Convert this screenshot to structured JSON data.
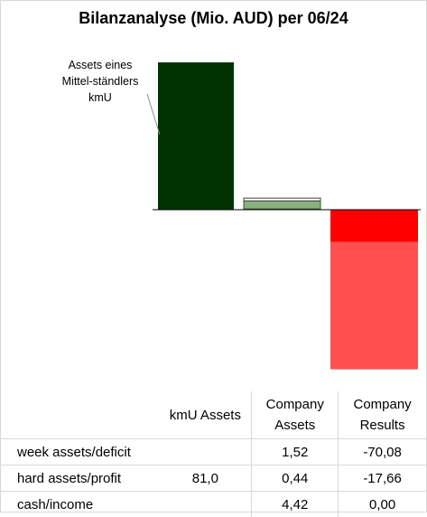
{
  "chart_data": {
    "type": "bar",
    "title": "Bilanzanalyse  (Mio. AUD) per 06/24",
    "columns": [
      "kmU Assets",
      "Company Assets",
      "Company Results"
    ],
    "annotation": "Assets eines Mittel-ständlers kmU",
    "rows": [
      {
        "label": "week assets/deficit",
        "values": [
          "",
          "1,52",
          "-70,08"
        ]
      },
      {
        "label": "hard assets/profit",
        "values": [
          "81,0",
          "0,44",
          "-17,66"
        ]
      },
      {
        "label": "cash/income",
        "values": [
          "",
          "4,42",
          "0,00"
        ]
      }
    ],
    "series": [
      {
        "name": "cash/income",
        "color": "#548235",
        "values": [
          0,
          4.42,
          0.0
        ]
      },
      {
        "name": "hard assets/profit",
        "color": "#003300",
        "values": [
          81.0,
          0.44,
          -17.66
        ]
      },
      {
        "name": "week assets/deficit",
        "color": "#ff4f4f",
        "values": [
          0,
          1.52,
          -70.08
        ]
      }
    ],
    "colors": {
      "kmu": "#003300",
      "company_assets": "#88b27d",
      "company_results_top": "#ff0000",
      "company_results_bottom": "#ff4f4f"
    },
    "ylim": [
      -87.74,
      81.0
    ]
  },
  "headers": {
    "kmu": "kmU Assets",
    "company_assets": "Company\nAssets",
    "company_results": "Company\nResults"
  }
}
